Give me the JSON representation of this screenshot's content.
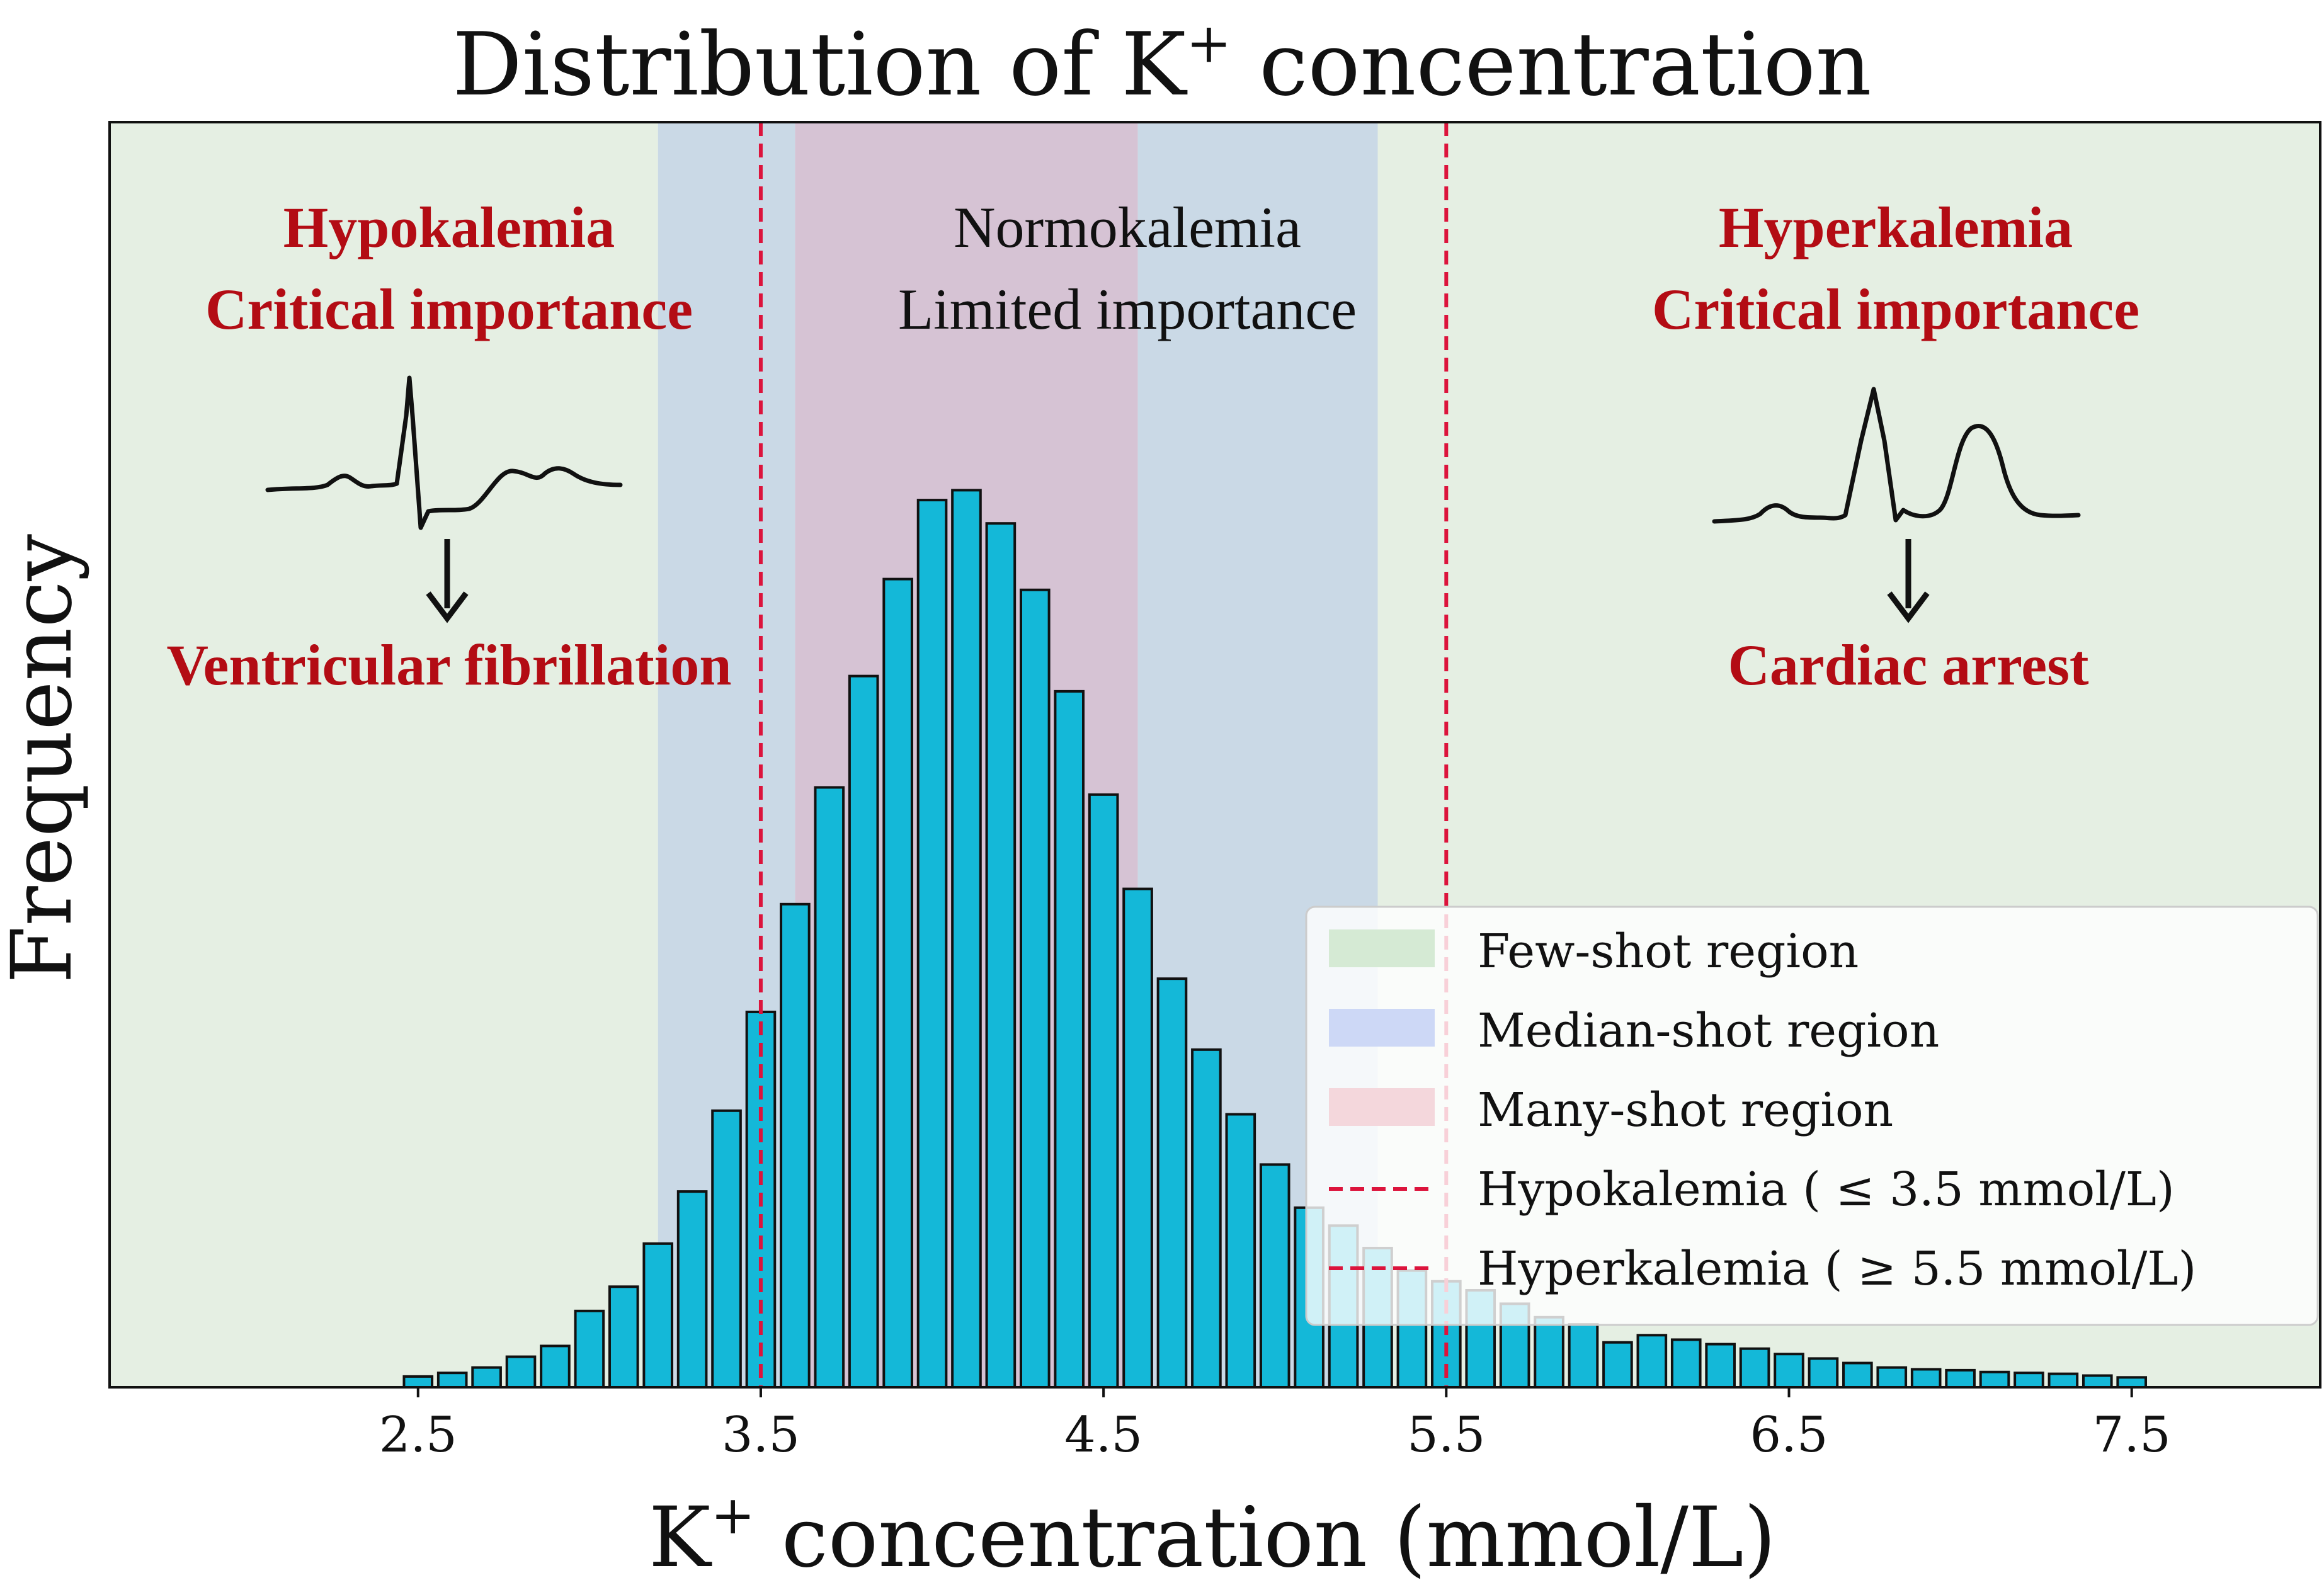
{
  "chart_data": {
    "type": "bar",
    "title": "Distribution of K⁺ concentration",
    "title_parts": {
      "pre": "Distribution of K",
      "sup": "+",
      "post": " concentration"
    },
    "xlabel": "K⁺ concentration (mmol/L)",
    "xlabel_parts": {
      "pre": "K",
      "sup": "+",
      "post": " concentration (mmol/L)"
    },
    "ylabel": "Frequency",
    "xlim": [
      1.6,
      8.05
    ],
    "ylim": [
      0,
      1.0
    ],
    "x_ticks": [
      2.5,
      3.5,
      4.5,
      5.5,
      6.5,
      7.5
    ],
    "x_tick_labels": [
      "2.5",
      "3.5",
      "4.5",
      "5.5",
      "6.5",
      "7.5"
    ],
    "show_y_ticks": false,
    "grid": false,
    "bin_width": 0.1,
    "bar_color": "#14b8d8",
    "bar_edge_color": "#111111",
    "series": [
      {
        "x": [
          2.5,
          2.6,
          2.7,
          2.8,
          2.9,
          3.0,
          3.1,
          3.2,
          3.3,
          3.4,
          3.5,
          3.6,
          3.7,
          3.8,
          3.9,
          4.0,
          4.1,
          4.2,
          4.3,
          4.4,
          4.5,
          4.6,
          4.7,
          4.8,
          4.9,
          5.0,
          5.1,
          5.2,
          5.3,
          5.4,
          5.5,
          5.6,
          5.7,
          5.8,
          5.9,
          6.0,
          6.1,
          6.2,
          6.3,
          6.4,
          6.5,
          6.6,
          6.7,
          6.8,
          6.9,
          7.0,
          7.1,
          7.2,
          7.3,
          7.4,
          7.5
        ],
        "values": [
          0.012,
          0.016,
          0.022,
          0.034,
          0.046,
          0.085,
          0.112,
          0.16,
          0.218,
          0.308,
          0.418,
          0.538,
          0.668,
          0.792,
          0.9,
          0.988,
          0.999,
          0.962,
          0.888,
          0.775,
          0.66,
          0.555,
          0.455,
          0.376,
          0.304,
          0.248,
          0.2,
          0.18,
          0.155,
          0.13,
          0.118,
          0.108,
          0.093,
          0.078,
          0.07,
          0.05,
          0.058,
          0.053,
          0.048,
          0.043,
          0.037,
          0.032,
          0.027,
          0.022,
          0.02,
          0.019,
          0.017,
          0.016,
          0.015,
          0.013,
          0.011
        ]
      }
    ],
    "regions": [
      {
        "name": "Few-shot region",
        "from": 1.6,
        "to": 3.2,
        "color": "#e5efe3"
      },
      {
        "name": "Median-shot region",
        "from": 3.2,
        "to": 3.6,
        "color": "#cad9e6"
      },
      {
        "name": "Many-shot region",
        "from": 3.6,
        "to": 4.6,
        "color": "#d6c3d4"
      },
      {
        "name": "Median-shot region",
        "from": 4.6,
        "to": 5.3,
        "color": "#cad9e6"
      },
      {
        "name": "Few-shot region",
        "from": 5.3,
        "to": 8.05,
        "color": "#e5efe3"
      }
    ],
    "threshold_lines": [
      {
        "label": "Hypokalemia ( ≤  3.5 mmol/L)",
        "x": 3.5,
        "color": "#dc143c"
      },
      {
        "label": "Hyperkalemia ( ≥  5.5 mmol/L)",
        "x": 5.5,
        "color": "#dc143c"
      }
    ],
    "annotations": {
      "left": {
        "line1": "Hypokalemia",
        "line2": "Critical importance",
        "outcome": "Ventricular fibrillation"
      },
      "center": {
        "line1": "Normokalemia",
        "line2": "Limited importance"
      },
      "right": {
        "line1": "Hyperkalemia",
        "line2": "Critical importance",
        "outcome": "Cardiac arrest"
      }
    },
    "legend": {
      "placement": "lower-right",
      "entries": [
        {
          "label": "Few-shot region",
          "kind": "patch",
          "color": "#d5ead4"
        },
        {
          "label": "Median-shot region",
          "kind": "patch",
          "color": "#cdd8f6"
        },
        {
          "label": "Many-shot region",
          "kind": "patch",
          "color": "#f4d7dc"
        },
        {
          "label": "Hypokalemia ( ≤  3.5 mmol/L)",
          "kind": "dash",
          "color": "#dc143c"
        },
        {
          "label": "Hyperkalemia ( ≥  5.5 mmol/L)",
          "kind": "dash",
          "color": "#dc143c"
        }
      ]
    }
  }
}
